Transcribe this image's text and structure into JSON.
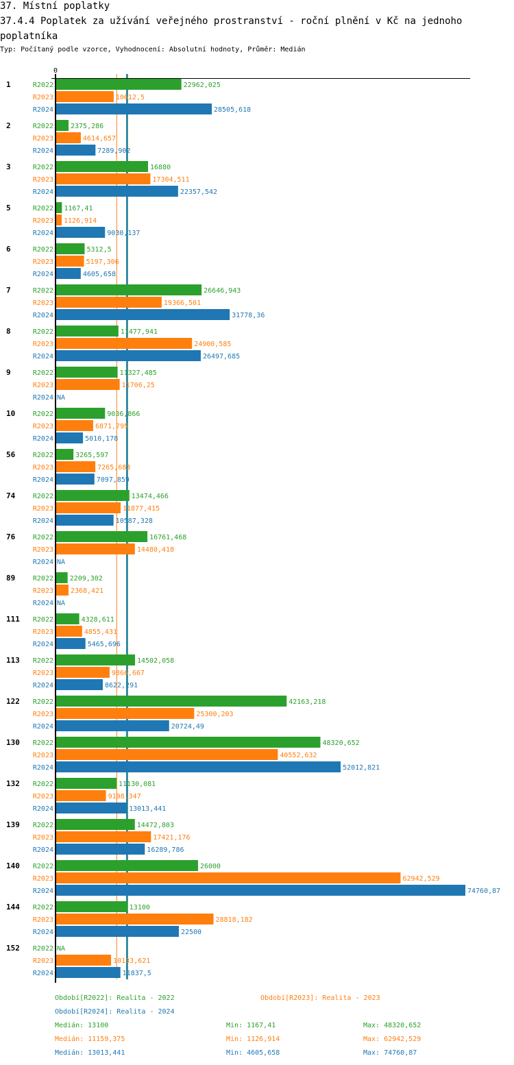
{
  "header": {
    "title": "37. Místní poplatky",
    "subtitle": "37.4.4 Poplatek za užívání veřejného prostranství - roční plnění v Kč na jednoho poplatníka",
    "meta": "Typ: Počítaný podle vzorce, Vyhodnocení: Absolutní hodnoty, Průměr: Medián"
  },
  "chart_data": {
    "type": "bar",
    "orientation": "horizontal",
    "title": "37.4.4 Poplatek za užívání veřejného prostranství - roční plnění v Kč na jednoho poplatníka",
    "xlabel": "",
    "ylabel": "",
    "zero_label": "0",
    "xlim": [
      0,
      74760.87
    ],
    "grid": false,
    "legend_placement": "bottom",
    "colors": {
      "R2022": "#2ca02c",
      "R2023": "#ff7f0e",
      "R2024": "#1f77b4"
    },
    "series_names": [
      "R2022",
      "R2023",
      "R2024"
    ],
    "categories": [
      "1",
      "2",
      "3",
      "5",
      "6",
      "7",
      "8",
      "9",
      "10",
      "56",
      "74",
      "76",
      "89",
      "111",
      "113",
      "122",
      "130",
      "132",
      "139",
      "140",
      "144",
      "152"
    ],
    "series": [
      {
        "name": "R2022",
        "values": [
          22962.025,
          2375.286,
          16880,
          1167.41,
          5312.5,
          26646.943,
          11477.941,
          11327.485,
          9036.866,
          3265.597,
          13474.466,
          16761.468,
          2209.302,
          4328.611,
          14502.058,
          42163.218,
          48320.652,
          11130.081,
          14472.803,
          26000,
          13100,
          null
        ],
        "labels": [
          "22962,025",
          "2375,286",
          "16880",
          "1167,41",
          "5312,5",
          "26646,943",
          "11477,941",
          "11327,485",
          "9036,866",
          "3265,597",
          "13474,466",
          "16761,468",
          "2209,302",
          "4328,611",
          "14502,058",
          "42163,218",
          "48320,652",
          "11130,081",
          "14472,803",
          "26000",
          "13100",
          "NA"
        ]
      },
      {
        "name": "R2023",
        "values": [
          10612.5,
          4614.657,
          17304.511,
          1126.914,
          5197.306,
          19366.501,
          24900.585,
          11706.25,
          6871.795,
          7265.683,
          11877.415,
          14480.418,
          2368.421,
          4855.431,
          9866.667,
          25300.203,
          40552.632,
          9198.347,
          17421.176,
          62942.529,
          28818.182,
          10133.621
        ],
        "labels": [
          "10612,5",
          "4614,657",
          "17304,511",
          "1126,914",
          "5197,306",
          "19366,501",
          "24900,585",
          "11706,25",
          "6871,795",
          "7265,683",
          "11877,415",
          "14480,418",
          "2368,421",
          "4855,431",
          "9866,667",
          "25300,203",
          "40552,632",
          "9198,347",
          "17421,176",
          "62942,529",
          "28818,182",
          "10133,621"
        ]
      },
      {
        "name": "R2024",
        "values": [
          28505.618,
          7289.902,
          22357.542,
          9030.137,
          4605.658,
          31778.36,
          26497.685,
          null,
          5010.178,
          7097.859,
          10587.328,
          null,
          null,
          5465.696,
          8622.291,
          20724.49,
          52012.821,
          13013.441,
          16289.786,
          74760.87,
          22500,
          11837.5
        ],
        "labels": [
          "28505,618",
          "7289,902",
          "22357,542",
          "9030,137",
          "4605,658",
          "31778,36",
          "26497,685",
          "NA",
          "5010,178",
          "7097,859",
          "10587,328",
          "NA",
          "NA",
          "5465,696",
          "8622,291",
          "20724,49",
          "52012,821",
          "13013,441",
          "16289,786",
          "74760,87",
          "22500",
          "11837,5"
        ]
      }
    ],
    "medians": [
      {
        "series": "R2022",
        "value": 13100
      },
      {
        "series": "R2023",
        "value": 11159.375
      },
      {
        "series": "R2024",
        "value": 13013.441
      }
    ]
  },
  "legend": {
    "periods": [
      {
        "text": "Období[R2022]: Realita - 2022",
        "color": "#2ca02c"
      },
      {
        "text": "Období[R2023]: Realita - 2023",
        "color": "#ff7f0e"
      },
      {
        "text": "Období[R2024]: Realita - 2024",
        "color": "#1f77b4"
      }
    ],
    "stats": [
      {
        "median": "Medián: 13100",
        "min": "Min: 1167,41",
        "max": "Max: 48320,652",
        "color": "#2ca02c"
      },
      {
        "median": "Medián: 11159,375",
        "min": "Min: 1126,914",
        "max": "Max: 62942,529",
        "color": "#ff7f0e"
      },
      {
        "median": "Medián: 13013,441",
        "min": "Min: 4605,658",
        "max": "Max: 74760,87",
        "color": "#1f77b4"
      }
    ]
  }
}
